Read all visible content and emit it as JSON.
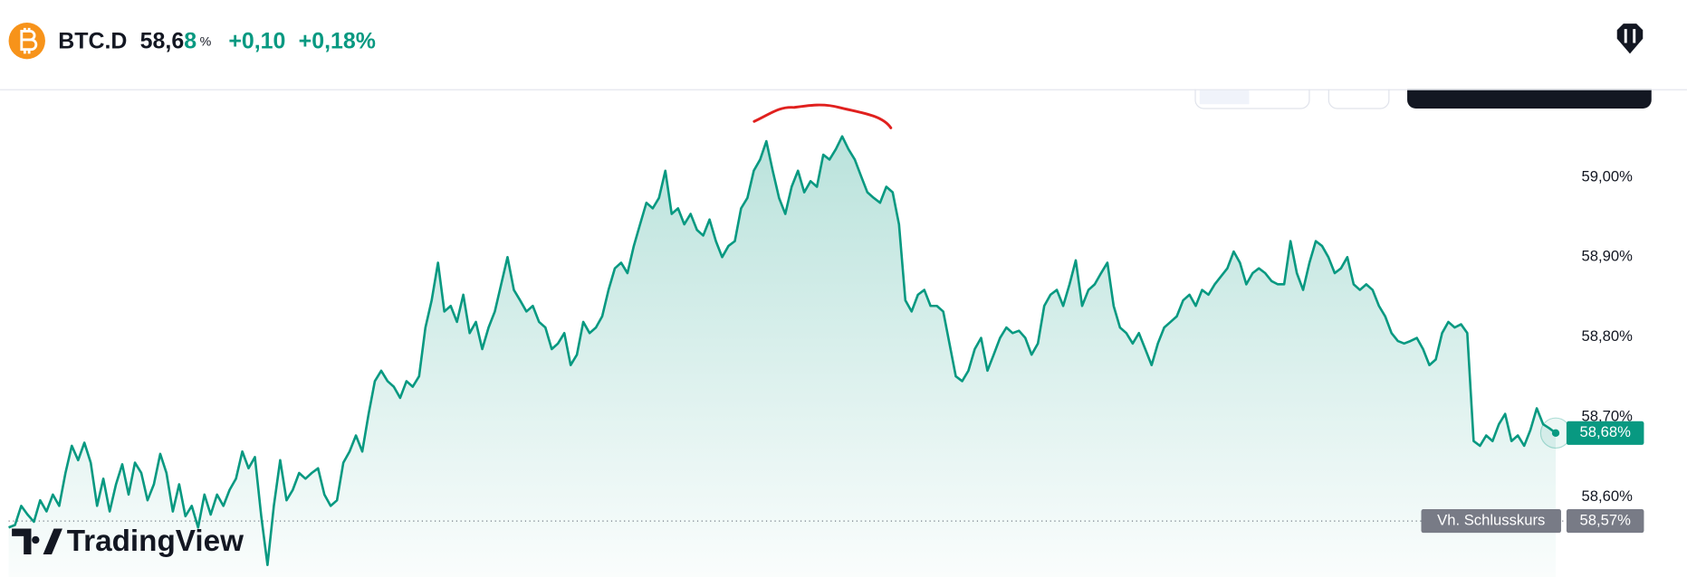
{
  "header": {
    "symbol": "BTC.D",
    "price_main": "58,6",
    "price_last_digit": "8",
    "price_unit": "%",
    "change": "+0,10",
    "change_pct": "+0,18%"
  },
  "watermark": "TradingView",
  "chart_data": {
    "type": "area",
    "color": "#089981",
    "values": [
      58.562,
      58.565,
      58.589,
      58.578,
      58.569,
      58.596,
      58.582,
      58.603,
      58.589,
      58.63,
      58.664,
      58.646,
      58.668,
      58.643,
      58.589,
      58.623,
      58.582,
      58.616,
      58.641,
      58.603,
      58.643,
      58.63,
      58.596,
      58.616,
      58.654,
      58.63,
      58.582,
      58.616,
      58.576,
      58.589,
      58.562,
      58.603,
      58.578,
      58.603,
      58.589,
      58.609,
      58.623,
      58.657,
      58.636,
      58.65,
      58.576,
      58.515,
      58.589,
      58.646,
      58.596,
      58.609,
      58.63,
      58.623,
      58.63,
      58.636,
      58.603,
      58.589,
      58.596,
      58.643,
      58.657,
      58.677,
      58.657,
      58.704,
      58.745,
      58.758,
      58.745,
      58.738,
      58.724,
      58.745,
      58.738,
      58.751,
      58.812,
      58.846,
      58.893,
      58.832,
      58.839,
      58.819,
      58.853,
      58.805,
      58.819,
      58.785,
      58.812,
      58.832,
      58.866,
      58.9,
      58.859,
      58.846,
      58.832,
      58.839,
      58.819,
      58.812,
      58.785,
      58.792,
      58.805,
      58.765,
      58.778,
      58.819,
      58.805,
      58.812,
      58.826,
      58.859,
      58.886,
      58.893,
      58.88,
      58.914,
      58.941,
      58.968,
      58.961,
      58.974,
      59.008,
      58.954,
      58.961,
      58.941,
      58.954,
      58.934,
      58.927,
      58.947,
      58.92,
      58.9,
      58.914,
      58.92,
      58.961,
      58.974,
      59.008,
      59.022,
      59.045,
      59.008,
      58.974,
      58.954,
      58.988,
      59.008,
      58.981,
      58.995,
      58.988,
      59.028,
      59.022,
      59.035,
      59.051,
      59.035,
      59.022,
      59.001,
      58.981,
      58.974,
      58.968,
      58.988,
      58.981,
      58.941,
      58.846,
      58.832,
      58.853,
      58.859,
      58.839,
      58.839,
      58.832,
      58.792,
      58.751,
      58.745,
      58.758,
      58.785,
      58.799,
      58.758,
      58.778,
      58.799,
      58.812,
      58.805,
      58.808,
      58.799,
      58.778,
      58.792,
      58.839,
      58.853,
      58.859,
      58.839,
      58.866,
      58.896,
      58.839,
      58.859,
      58.866,
      58.88,
      58.893,
      58.839,
      58.812,
      58.805,
      58.792,
      58.805,
      58.785,
      58.765,
      58.792,
      58.812,
      58.819,
      58.826,
      58.846,
      58.853,
      58.839,
      58.859,
      58.853,
      58.866,
      58.876,
      58.886,
      58.907,
      58.893,
      58.866,
      58.88,
      58.886,
      58.88,
      58.87,
      58.866,
      58.866,
      58.92,
      58.88,
      58.859,
      58.893,
      58.92,
      58.914,
      58.9,
      58.88,
      58.886,
      58.9,
      58.866,
      58.859,
      58.866,
      58.859,
      58.839,
      58.826,
      58.805,
      58.795,
      58.792,
      58.795,
      58.799,
      58.785,
      58.765,
      58.772,
      58.805,
      58.819,
      58.812,
      58.816,
      58.805,
      58.67,
      58.664,
      58.677,
      58.67,
      58.691,
      58.704,
      58.67,
      58.677,
      58.664,
      58.684,
      58.711,
      58.691,
      58.686,
      58.68
    ],
    "ylim": [
      58.5,
      59.11
    ],
    "yticks": [
      {
        "value": 59.0,
        "label": "59,00%"
      },
      {
        "value": 58.9,
        "label": "58,90%"
      },
      {
        "value": 58.8,
        "label": "58,80%"
      },
      {
        "value": 58.7,
        "label": "58,70%"
      },
      {
        "value": 58.6,
        "label": "58,60%"
      }
    ],
    "last_price": {
      "value": 58.68,
      "label": "58,68%"
    },
    "prev_close": {
      "name": "Vh. Schlusskurs",
      "value": 58.57,
      "label": "58,57%"
    }
  }
}
